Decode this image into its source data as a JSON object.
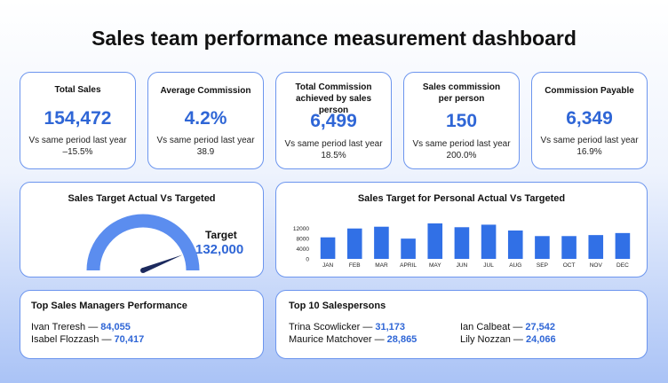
{
  "title": "Sales team performance measurement dashboard",
  "kpis": [
    {
      "label": "Total Sales",
      "value": "154,472",
      "sub": "Vs same period last year –15.5%"
    },
    {
      "label": "Average Commission",
      "value": "4.2%",
      "sub": "Vs same period last year 38.9"
    },
    {
      "label": "Total Commission achieved by sales person",
      "value": "6,499",
      "sub": "Vs same period last year 18.5%"
    },
    {
      "label": "Sales commission per person",
      "value": "150",
      "sub": "Vs same period last year 200.0%"
    },
    {
      "label": "Commission Payable",
      "value": "6,349",
      "sub": "Vs same period last year 16.9%"
    }
  ],
  "gauge": {
    "title": "Sales Target Actual Vs Targeted",
    "target_label": "Target",
    "target_value": "132,000",
    "needle_fraction": 0.88,
    "arc_color": "#5b8def",
    "needle_color": "#1c2a5e"
  },
  "bar_chart": {
    "title": "Sales Target for Personal Actual Vs Targeted"
  },
  "chart_data": {
    "type": "bar",
    "title": "Sales Target for Personal Actual Vs Targeted",
    "categories": [
      "JAN",
      "FEB",
      "MAR",
      "APRIL",
      "MAY",
      "JUN",
      "JUL",
      "AUG",
      "SEP",
      "OCT",
      "NOV",
      "DEC"
    ],
    "values": [
      8500,
      12000,
      12700,
      8000,
      14000,
      12500,
      13500,
      11200,
      9000,
      9000,
      9400,
      10200
    ],
    "yticks": [
      "12000",
      "8000",
      "4000",
      "0"
    ],
    "ylim": [
      0,
      14000
    ],
    "bar_color": "#3170e6"
  },
  "managers": {
    "title": "Top Sales Managers Performance",
    "items": [
      {
        "name": "Ivan Treresh — ",
        "value": "84,055"
      },
      {
        "name": "Isabel Flozzash — ",
        "value": "70,417"
      }
    ]
  },
  "salespersons": {
    "title": "Top 10 Salespersons",
    "items": [
      {
        "name": "Trina Scowlicker — ",
        "value": "31,173"
      },
      {
        "name": "Maurice Matchover — ",
        "value": "28,865"
      },
      {
        "name": "Ian Calbeat — ",
        "value": "27,542"
      },
      {
        "name": "Lily Nozzan — ",
        "value": "24,066"
      }
    ]
  }
}
